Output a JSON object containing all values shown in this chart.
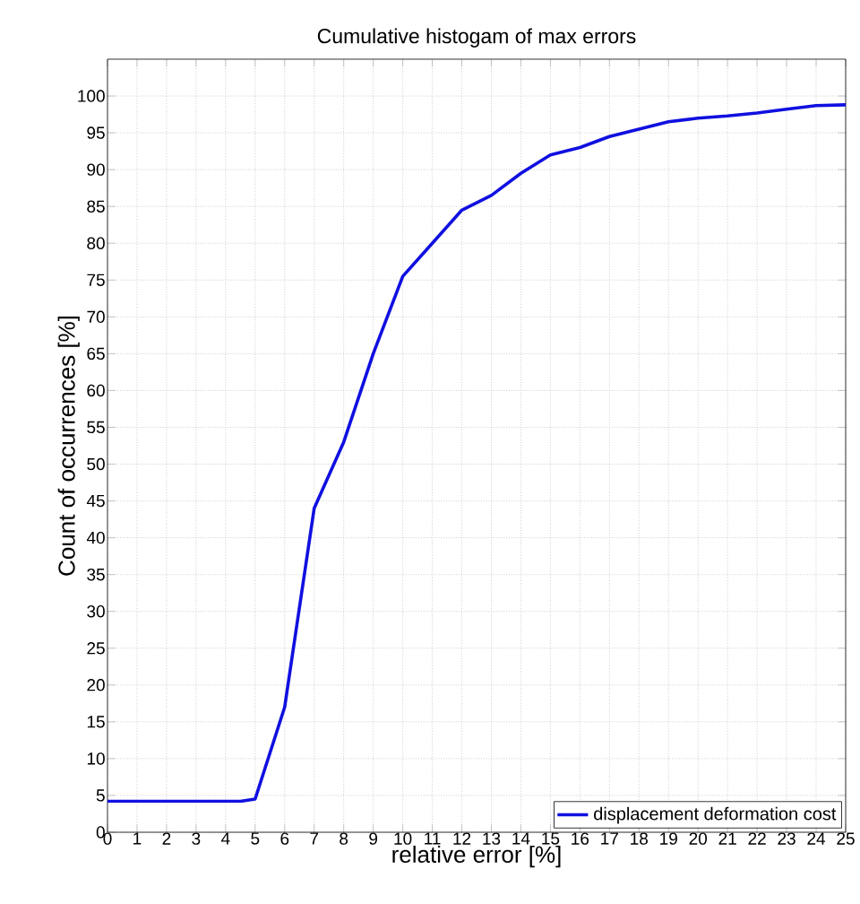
{
  "chart_data": {
    "type": "line",
    "title": "Cumulative histogam of max errors",
    "xlabel": "relative error [%]",
    "ylabel": "Count of occurrences [%]",
    "x": [
      0,
      1,
      2,
      3,
      4,
      4.5,
      5,
      6,
      7,
      8,
      9,
      10,
      11,
      12,
      13,
      14,
      15,
      16,
      17,
      18,
      19,
      20,
      21,
      22,
      23,
      24,
      25
    ],
    "series": [
      {
        "name": "displacement deformation cost",
        "color": "#1010e0",
        "values": [
          4.2,
          4.2,
          4.2,
          4.2,
          4.2,
          4.2,
          4.5,
          17,
          44,
          53,
          65,
          75.5,
          80,
          84.5,
          86.5,
          89.5,
          92,
          93,
          94.5,
          95.5,
          96.5,
          97,
          97.3,
          97.7,
          98.2,
          98.7,
          98.8
        ]
      }
    ],
    "xlim": [
      0,
      25
    ],
    "ylim": [
      0,
      105
    ],
    "xticks": [
      0,
      1,
      2,
      3,
      4,
      5,
      6,
      7,
      8,
      9,
      10,
      11,
      12,
      13,
      14,
      15,
      16,
      17,
      18,
      19,
      20,
      21,
      22,
      23,
      24,
      25
    ],
    "yticks": [
      0,
      5,
      10,
      15,
      20,
      25,
      30,
      35,
      40,
      45,
      50,
      55,
      60,
      65,
      70,
      75,
      80,
      85,
      90,
      95,
      100
    ],
    "grid": true,
    "legend": "bottom right",
    "line_style": "solid",
    "marker": "none"
  }
}
